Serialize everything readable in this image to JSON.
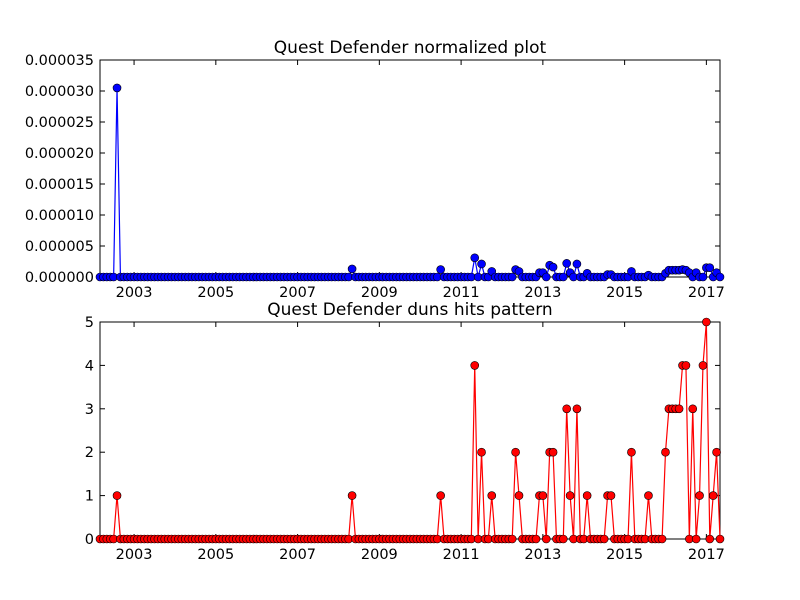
{
  "chart_data": [
    {
      "type": "line",
      "title": "Quest Defender normalized plot",
      "xlabel": "",
      "ylabel": "",
      "x_range": [
        "2002-03",
        "2017-05"
      ],
      "ylim": [
        0,
        3.5e-05
      ],
      "x_ticks": [
        "2003",
        "2005",
        "2007",
        "2009",
        "2011",
        "2013",
        "2015",
        "2017"
      ],
      "y_ticks": [
        "0.000000",
        "0.000005",
        "0.000010",
        "0.000015",
        "0.000020",
        "0.000025",
        "0.000030",
        "0.000035"
      ],
      "grid": false,
      "series": [
        {
          "color": "#0000ff",
          "marker": "circle",
          "points": [
            {
              "x": "2002-08",
              "y": 3.05e-05
            },
            {
              "x": "2008-05",
              "y": 1.3e-06
            },
            {
              "x": "2010-07",
              "y": 1.2e-06
            },
            {
              "x": "2011-05",
              "y": 3.1e-06
            },
            {
              "x": "2011-07",
              "y": 2.1e-06
            },
            {
              "x": "2011-10",
              "y": 9e-07
            },
            {
              "x": "2012-05",
              "y": 1.2e-06
            },
            {
              "x": "2012-06",
              "y": 9e-07
            },
            {
              "x": "2012-12",
              "y": 7e-07
            },
            {
              "x": "2013-01",
              "y": 7e-07
            },
            {
              "x": "2013-03",
              "y": 1.9e-06
            },
            {
              "x": "2013-04",
              "y": 1.6e-06
            },
            {
              "x": "2013-08",
              "y": 2.2e-06
            },
            {
              "x": "2013-09",
              "y": 7e-07
            },
            {
              "x": "2013-11",
              "y": 2.1e-06
            },
            {
              "x": "2014-02",
              "y": 6e-07
            },
            {
              "x": "2014-08",
              "y": 4e-07
            },
            {
              "x": "2014-09",
              "y": 4e-07
            },
            {
              "x": "2015-03",
              "y": 9e-07
            },
            {
              "x": "2015-08",
              "y": 3e-07
            },
            {
              "x": "2016-01",
              "y": 6e-07
            },
            {
              "x": "2016-02",
              "y": 1.1e-06
            },
            {
              "x": "2016-03",
              "y": 1.1e-06
            },
            {
              "x": "2016-04",
              "y": 1.1e-06
            },
            {
              "x": "2016-05",
              "y": 1.1e-06
            },
            {
              "x": "2016-06",
              "y": 1.2e-06
            },
            {
              "x": "2016-07",
              "y": 1.1e-06
            },
            {
              "x": "2016-08",
              "y": 7e-07
            },
            {
              "x": "2016-10",
              "y": 7e-07
            },
            {
              "x": "2017-01",
              "y": 1.5e-06
            },
            {
              "x": "2017-02",
              "y": 1.5e-06
            },
            {
              "x": "2017-04",
              "y": 7e-07
            }
          ]
        }
      ]
    },
    {
      "type": "line",
      "title": "Quest Defender duns hits pattern",
      "xlabel": "",
      "ylabel": "",
      "x_range": [
        "2002-03",
        "2017-05"
      ],
      "ylim": [
        0,
        5
      ],
      "x_ticks": [
        "2003",
        "2005",
        "2007",
        "2009",
        "2011",
        "2013",
        "2015",
        "2017"
      ],
      "y_ticks": [
        "0",
        "1",
        "2",
        "3",
        "4",
        "5"
      ],
      "grid": false,
      "series": [
        {
          "color": "#ff0000",
          "marker": "circle",
          "points": [
            {
              "x": "2002-08",
              "y": 1
            },
            {
              "x": "2008-05",
              "y": 1
            },
            {
              "x": "2010-07",
              "y": 1
            },
            {
              "x": "2011-05",
              "y": 4
            },
            {
              "x": "2011-07",
              "y": 2
            },
            {
              "x": "2011-10",
              "y": 1
            },
            {
              "x": "2012-05",
              "y": 2
            },
            {
              "x": "2012-06",
              "y": 1
            },
            {
              "x": "2012-12",
              "y": 1
            },
            {
              "x": "2013-01",
              "y": 1
            },
            {
              "x": "2013-03",
              "y": 2
            },
            {
              "x": "2013-04",
              "y": 2
            },
            {
              "x": "2013-08",
              "y": 3
            },
            {
              "x": "2013-09",
              "y": 1
            },
            {
              "x": "2013-11",
              "y": 3
            },
            {
              "x": "2014-02",
              "y": 1
            },
            {
              "x": "2014-08",
              "y": 1
            },
            {
              "x": "2014-09",
              "y": 1
            },
            {
              "x": "2015-03",
              "y": 2
            },
            {
              "x": "2015-08",
              "y": 1
            },
            {
              "x": "2016-01",
              "y": 2
            },
            {
              "x": "2016-02",
              "y": 3
            },
            {
              "x": "2016-03",
              "y": 3
            },
            {
              "x": "2016-04",
              "y": 3
            },
            {
              "x": "2016-05",
              "y": 3
            },
            {
              "x": "2016-06",
              "y": 4
            },
            {
              "x": "2016-07",
              "y": 4
            },
            {
              "x": "2016-09",
              "y": 3
            },
            {
              "x": "2016-11",
              "y": 1
            },
            {
              "x": "2016-12",
              "y": 4
            },
            {
              "x": "2017-01",
              "y": 5
            },
            {
              "x": "2017-03",
              "y": 1
            },
            {
              "x": "2017-04",
              "y": 2
            }
          ]
        }
      ]
    }
  ]
}
